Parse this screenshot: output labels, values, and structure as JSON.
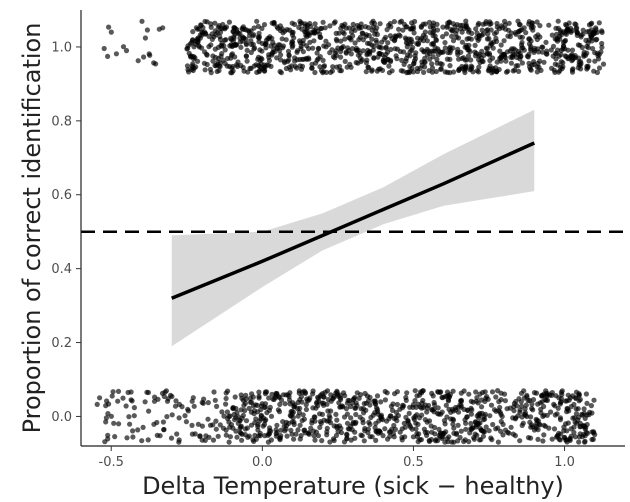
{
  "chart_data": {
    "type": "scatter",
    "xlabel": "Delta Temperature (sick − healthy)",
    "ylabel": "Proportion of correct identification",
    "xlim": [
      -0.6,
      1.2
    ],
    "ylim": [
      -0.08,
      1.1
    ],
    "x_ticks": [
      -0.5,
      0.0,
      0.5,
      1.0
    ],
    "x_tick_labels": [
      "-0.5",
      "0.0",
      "0.5",
      "1.0"
    ],
    "y_ticks": [
      0.0,
      0.2,
      0.4,
      0.6,
      0.8,
      1.0
    ],
    "y_tick_labels": [
      "0.0",
      "0.2",
      "0.4",
      "0.6",
      "0.8",
      "1.0"
    ],
    "grid": false,
    "reference_line": {
      "y": 0.5,
      "style": "dashed"
    },
    "points": {
      "description": "binary outcomes jittered around 0 and 1",
      "outcomes": [
        0,
        1
      ],
      "jitter": 0.07,
      "x_range": [
        -0.55,
        1.13
      ],
      "dense_x_range_correct": [
        -0.25,
        1.13
      ],
      "dense_x_range_incorrect": [
        -0.55,
        1.1
      ],
      "color": "#000000",
      "opacity": 0.65
    },
    "fit": {
      "x": [
        -0.3,
        0.0,
        0.2,
        0.4,
        0.6,
        0.9
      ],
      "y": [
        0.32,
        0.42,
        0.49,
        0.56,
        0.63,
        0.74
      ],
      "ci_lower": [
        0.19,
        0.35,
        0.45,
        0.52,
        0.57,
        0.61
      ],
      "ci_upper": [
        0.49,
        0.5,
        0.55,
        0.62,
        0.71,
        0.83
      ],
      "line_color": "#000000",
      "ci_color": "#d9d9d9"
    }
  }
}
